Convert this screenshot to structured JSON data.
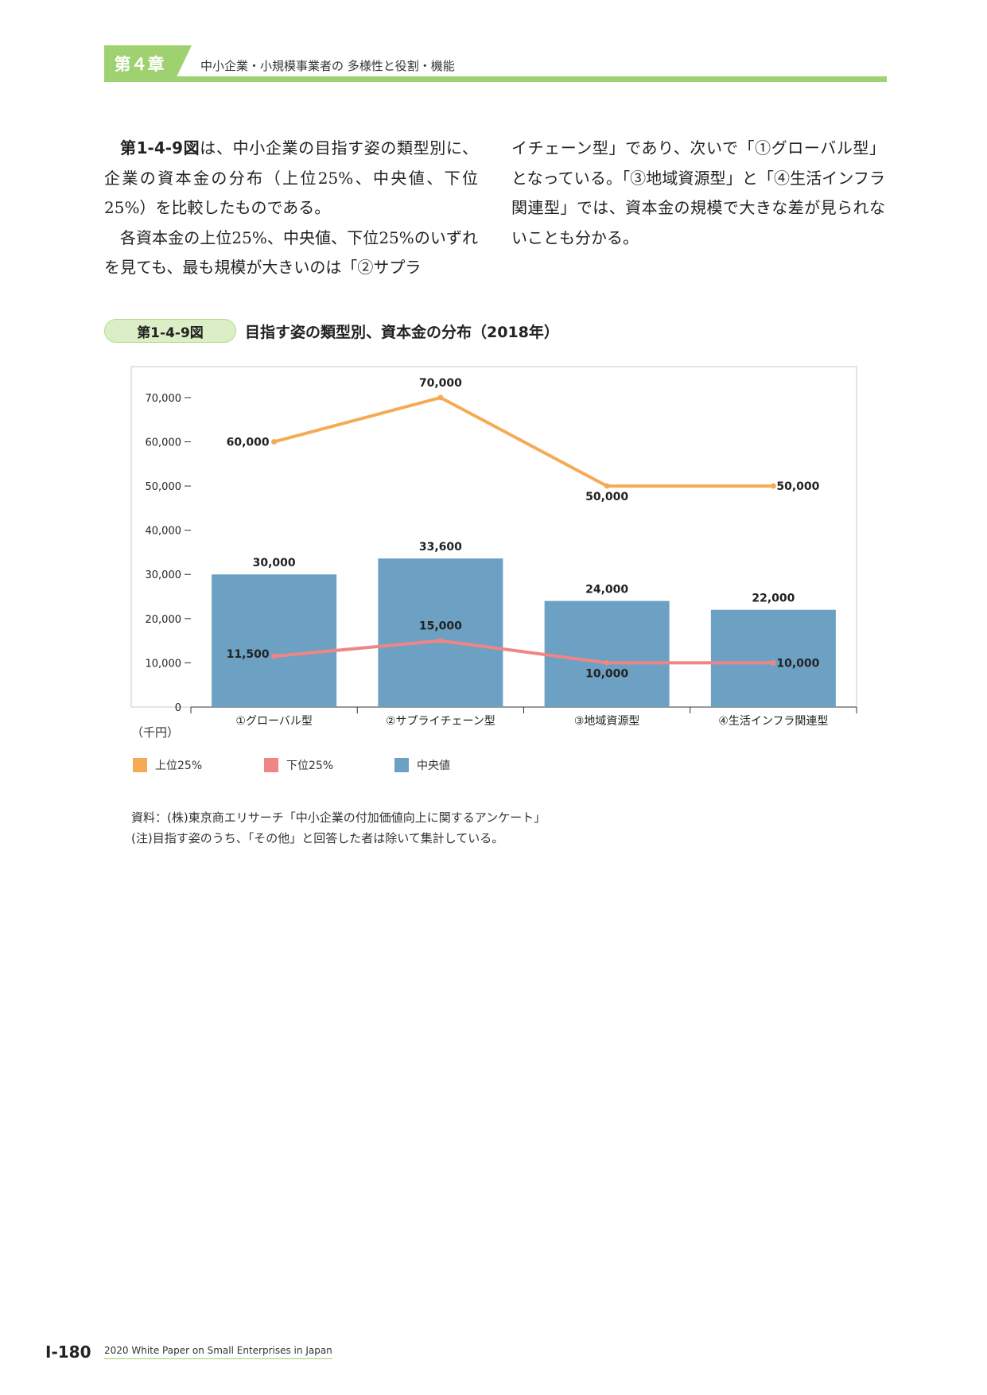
{
  "header": {
    "chapter_tab": "第４章",
    "chapter_title": "中小企業・小規模事業者の 多様性と役割・機能"
  },
  "body": {
    "left_p1_ref": "第1-4-9図",
    "left_p1_rest": "は、中小企業の目指す姿の類型別に、企業の資本金の分布（上位25%、中央値、下位25%）を比較したものである。",
    "left_p2": "各資本金の上位25%、中央値、下位25%のいずれを見ても、最も規模が大きいのは「②サプラ",
    "right_p1": "イチェーン型」であり、次いで「①グローバル型」となっている。「③地域資源型」と「④生活インフラ関連型」では、資本金の規模で大きな差が見られないことも分かる。"
  },
  "figure": {
    "number": "第1-4-9図",
    "title": "目指す姿の類型別、資本金の分布（2018年）"
  },
  "chart_data": {
    "type": "bar",
    "categories": [
      "①グローバル型",
      "②サプライチェーン型",
      "③地域資源型",
      "④生活インフラ関連型"
    ],
    "series": [
      {
        "name": "中央値",
        "type": "bar",
        "color": "#6ca1c3",
        "values": [
          30000,
          33600,
          24000,
          22000
        ],
        "labels": [
          "30,000",
          "33,600",
          "24,000",
          "22,000"
        ]
      },
      {
        "name": "上位25%",
        "type": "line",
        "color": "#f5ab55",
        "values": [
          60000,
          70000,
          50000,
          50000
        ],
        "labels": [
          "60,000",
          "70,000",
          "50,000",
          "50,000"
        ]
      },
      {
        "name": "下位25%",
        "type": "line",
        "color": "#f08585",
        "values": [
          11500,
          15000,
          10000,
          10000
        ],
        "labels": [
          "11,500",
          "15,000",
          "10,000",
          "10,000"
        ]
      }
    ],
    "y_ticks": [
      0,
      10000,
      20000,
      30000,
      40000,
      50000,
      60000,
      70000
    ],
    "y_tick_labels": [
      "0",
      "10,000",
      "20,000",
      "30,000",
      "40,000",
      "50,000",
      "60,000",
      "70,000"
    ],
    "ylim": [
      0,
      77000
    ],
    "unit_label": "（千円）",
    "legend": [
      {
        "label": "上位25%",
        "color": "#f5ab55"
      },
      {
        "label": "下位25%",
        "color": "#f08585"
      },
      {
        "label": "中央値",
        "color": "#6ca1c3"
      }
    ]
  },
  "notes": {
    "source": "資料：(株)東京商エリサーチ「中小企業の付加価値向上に関するアンケート」",
    "note": "(注)目指す姿のうち、「その他」と回答した者は除いて集計している。"
  },
  "footer": {
    "page_number": "I-180",
    "publication": "2020 White Paper on Small Enterprises in Japan"
  }
}
